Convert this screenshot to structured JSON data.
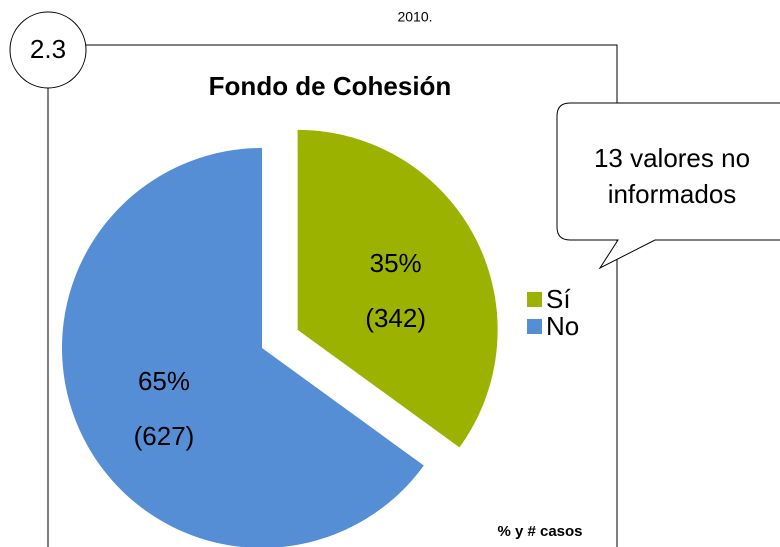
{
  "chart_data": {
    "type": "pie",
    "header": "2010.",
    "badge": "2.3",
    "title": "Fondo de Cohesión",
    "categories": [
      "Sí",
      "No"
    ],
    "values": [
      35,
      65
    ],
    "value_labels": [
      "35%",
      "65%"
    ],
    "counts": [
      342,
      627
    ],
    "count_labels": [
      "(342)",
      "(627)"
    ],
    "colors": [
      "#9bb300",
      "#558ed5"
    ],
    "legend": "right",
    "callout": [
      "13 valores no",
      "informados"
    ],
    "footnote": "% y # casos"
  }
}
